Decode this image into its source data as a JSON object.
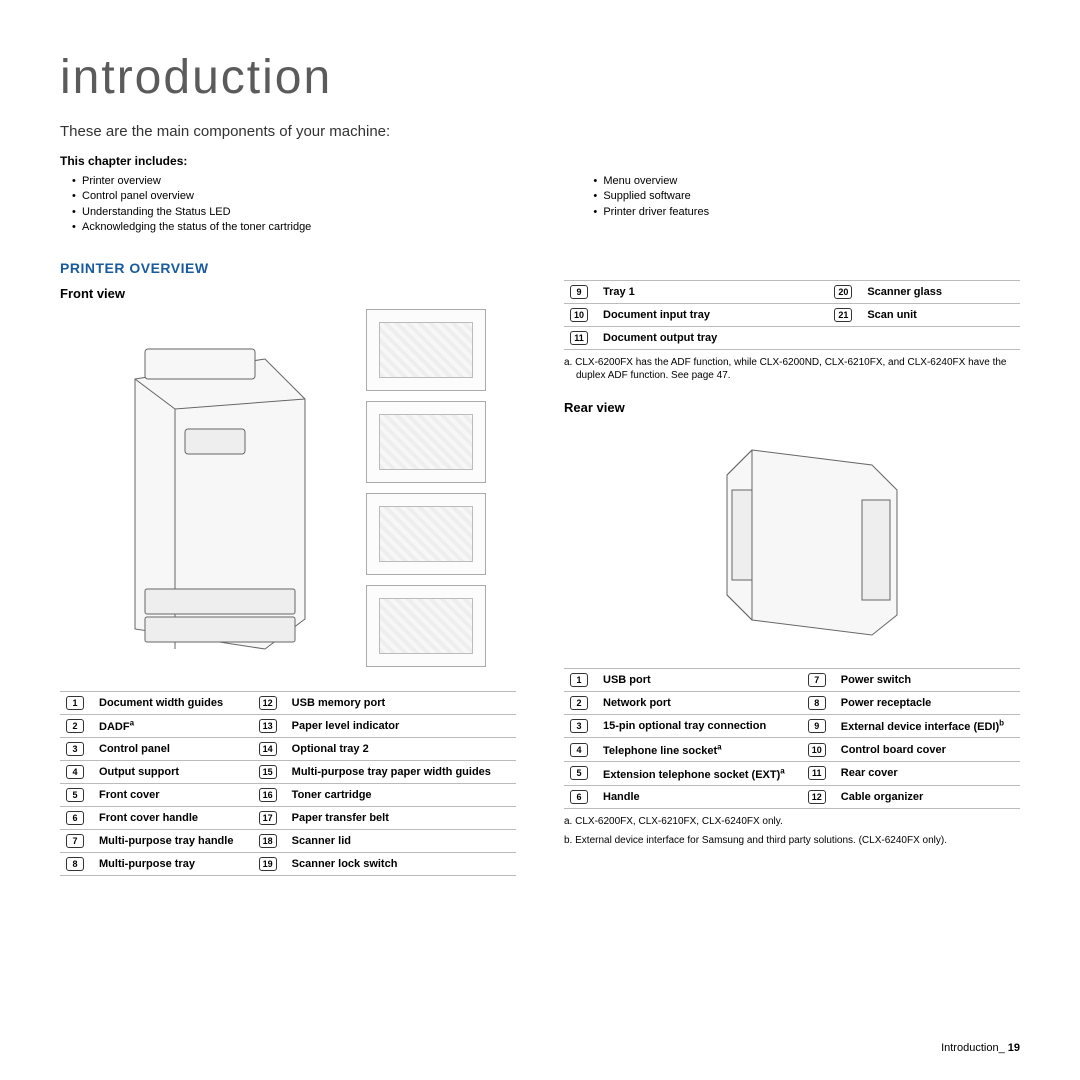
{
  "page": {
    "title": "introduction",
    "subtitle": "These are the main components of your machine:",
    "chapter_heading": "This chapter includes:",
    "bullets_left": [
      "Printer overview",
      "Control panel overview",
      "Understanding the Status LED",
      "Acknowledging the status of the toner cartridge"
    ],
    "bullets_right": [
      "Menu overview",
      "Supplied software",
      "Printer driver features"
    ],
    "section_title": "PRINTER OVERVIEW",
    "front_view_title": "Front view",
    "rear_view_title": "Rear view",
    "footer_label": "Introduction",
    "footer_page": "19"
  },
  "colors": {
    "title_color": "#5b5b5b",
    "section_color": "#1a5a9e",
    "border_color": "#bbbbbb",
    "text_color": "#000000"
  },
  "front_parts": [
    {
      "num": "1",
      "label": "Document width guides"
    },
    {
      "num": "2",
      "label": "DADF",
      "sup": "a"
    },
    {
      "num": "3",
      "label": "Control panel"
    },
    {
      "num": "4",
      "label": "Output support"
    },
    {
      "num": "5",
      "label": "Front cover"
    },
    {
      "num": "6",
      "label": "Front cover handle"
    },
    {
      "num": "7",
      "label": "Multi-purpose tray handle"
    },
    {
      "num": "8",
      "label": "Multi-purpose tray"
    }
  ],
  "front_parts_right": [
    {
      "num": "12",
      "label": "USB memory port"
    },
    {
      "num": "13",
      "label": "Paper level indicator"
    },
    {
      "num": "14",
      "label": "Optional tray 2"
    },
    {
      "num": "15",
      "label": "Multi-purpose tray paper width guides"
    },
    {
      "num": "16",
      "label": "Toner cartridge"
    },
    {
      "num": "17",
      "label": "Paper transfer belt"
    },
    {
      "num": "18",
      "label": "Scanner lid"
    },
    {
      "num": "19",
      "label": "Scanner lock switch"
    }
  ],
  "front_top_extra": [
    {
      "num": "9",
      "label": "Tray 1"
    },
    {
      "num": "10",
      "label": "Document input tray"
    },
    {
      "num": "11",
      "label": "Document output tray"
    }
  ],
  "front_top_extra_right": [
    {
      "num": "20",
      "label": "Scanner glass"
    },
    {
      "num": "21",
      "label": "Scan unit"
    },
    {
      "num": "",
      "label": ""
    }
  ],
  "front_footnote": "a. CLX-6200FX has the ADF function, while CLX-6200ND, CLX-6210FX, and CLX-6240FX have the duplex ADF function. See page 47.",
  "rear_parts": [
    {
      "num": "1",
      "label": "USB port"
    },
    {
      "num": "2",
      "label": "Network port"
    },
    {
      "num": "3",
      "label": "15-pin optional tray connection"
    },
    {
      "num": "4",
      "label": "Telephone line socket",
      "sup": "a"
    },
    {
      "num": "5",
      "label": "Extension telephone socket (EXT)",
      "sup": "a"
    },
    {
      "num": "6",
      "label": "Handle"
    }
  ],
  "rear_parts_right": [
    {
      "num": "7",
      "label": "Power switch"
    },
    {
      "num": "8",
      "label": "Power receptacle"
    },
    {
      "num": "9",
      "label": "External device interface (EDI)",
      "sup": "b"
    },
    {
      "num": "10",
      "label": "Control board cover"
    },
    {
      "num": "11",
      "label": "Rear cover"
    },
    {
      "num": "12",
      "label": "Cable organizer"
    }
  ],
  "rear_footnotes": [
    "a. CLX-6200FX, CLX-6210FX, CLX-6240FX only.",
    "b. External device interface for Samsung and third party solutions. (CLX-6240FX only)."
  ]
}
